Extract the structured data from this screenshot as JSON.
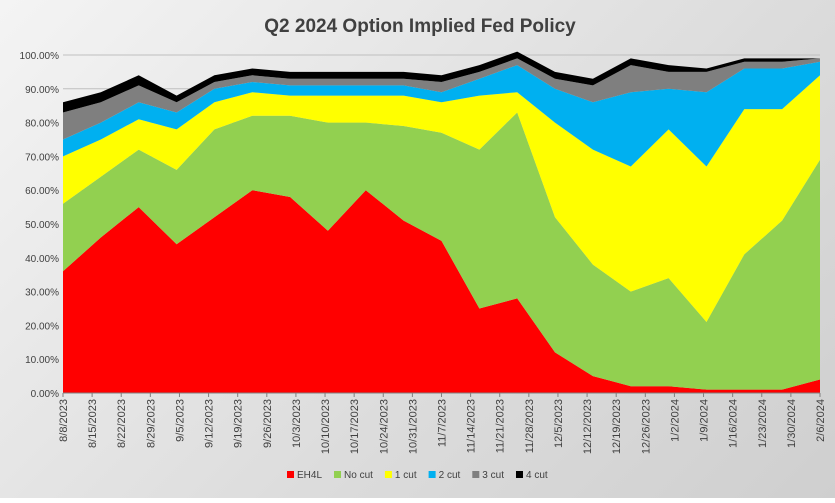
{
  "chart_data": {
    "type": "area",
    "stacked": true,
    "title": "Q2 2024 Option Implied Fed Policy",
    "xlabel": "",
    "ylabel": "",
    "ylim": [
      0,
      100
    ],
    "y_ticks": [
      "0.00%",
      "10.00%",
      "20.00%",
      "30.00%",
      "40.00%",
      "50.00%",
      "60.00%",
      "70.00%",
      "80.00%",
      "90.00%",
      "100.00%"
    ],
    "x_tick_labels": [
      "8/8/2023",
      "8/15/2023",
      "8/22/2023",
      "8/29/2023",
      "9/5/2023",
      "9/12/2023",
      "9/19/2023",
      "9/26/2023",
      "10/3/2023",
      "10/10/2023",
      "10/17/2023",
      "10/24/2023",
      "10/31/2023",
      "11/7/2023",
      "11/14/2023",
      "11/21/2023",
      "11/28/2023",
      "12/5/2023",
      "12/12/2023",
      "12/19/2023",
      "12/26/2023",
      "1/2/2024",
      "1/9/2024",
      "1/16/2024",
      "1/23/2024",
      "1/30/2024",
      "2/6/2024"
    ],
    "legend_position": "bottom",
    "series": [
      {
        "name": "EH4L",
        "color": "#ff0000",
        "values": [
          36,
          46,
          55,
          44,
          52,
          60,
          58,
          48,
          60,
          51,
          45,
          25,
          28,
          12,
          5,
          2,
          2,
          1,
          1,
          1,
          4
        ]
      },
      {
        "name": "No cut",
        "color": "#92d050",
        "values": [
          20,
          18,
          17,
          22,
          26,
          22,
          24,
          32,
          20,
          28,
          32,
          47,
          55,
          40,
          33,
          28,
          32,
          20,
          40,
          50,
          65
        ]
      },
      {
        "name": "1 cut",
        "color": "#ffff00",
        "values": [
          14,
          11,
          9,
          12,
          8,
          7,
          6,
          8,
          8,
          9,
          9,
          16,
          6,
          28,
          34,
          37,
          44,
          46,
          43,
          33,
          25
        ]
      },
      {
        "name": "2 cut",
        "color": "#00b0f0",
        "values": [
          5,
          5,
          5,
          5,
          4,
          3,
          3,
          3,
          3,
          3,
          3,
          5,
          8,
          10,
          14,
          22,
          12,
          22,
          12,
          12,
          4
        ]
      },
      {
        "name": "3 cut",
        "color": "#7f7f7f",
        "values": [
          8,
          6,
          5,
          3,
          2,
          2,
          2,
          2,
          2,
          2,
          3,
          2,
          2,
          3,
          5,
          8,
          5,
          6,
          2,
          2,
          1
        ]
      },
      {
        "name": "4 cut",
        "color": "#000000",
        "values": [
          3,
          3,
          3,
          2,
          2,
          2,
          2,
          2,
          2,
          2,
          2,
          2,
          2,
          2,
          2,
          2,
          2,
          1,
          1,
          1,
          0
        ]
      }
    ]
  }
}
